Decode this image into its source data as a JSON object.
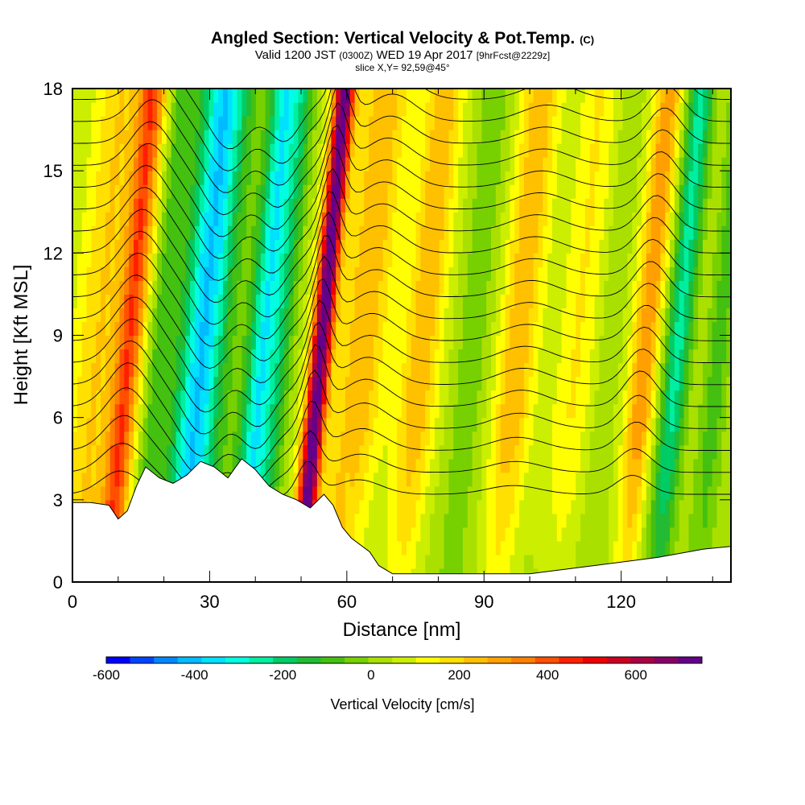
{
  "header": {
    "title": "Angled Section: Vertical Velocity & Pot.Temp.",
    "title_tag": "(C)",
    "valid_prefix": "Valid 1200 JST",
    "valid_utc": "(0300Z)",
    "valid_date": "WED 19 Apr 2017",
    "forecast": "[9hrFcst@2229z]",
    "slice": "slice X,Y= 92,59@45°"
  },
  "chart_data": {
    "type": "heatmap",
    "xlabel": "Distance [nm]",
    "ylabel": "Height [Kft MSL]",
    "xlim": [
      0,
      144
    ],
    "ylim": [
      0,
      18
    ],
    "x_ticks": [
      0,
      30,
      60,
      90,
      120
    ],
    "y_ticks": [
      0,
      3,
      6,
      9,
      12,
      15,
      18
    ],
    "colorbar": {
      "title": "Vertical Velocity [cm/s]",
      "tick_values": [
        -600,
        -400,
        -200,
        0,
        200,
        400,
        600
      ],
      "range": [
        -600,
        750
      ],
      "colors": [
        "#0000ff",
        "#0044ff",
        "#0088ff",
        "#00bbff",
        "#00e0ff",
        "#00ffe0",
        "#00eea0",
        "#00cc66",
        "#22bb33",
        "#44c011",
        "#77d000",
        "#aae000",
        "#ccee00",
        "#ffff00",
        "#ffe000",
        "#ffc000",
        "#ffa000",
        "#ff8000",
        "#ff5000",
        "#ff2000",
        "#ee0000",
        "#cc0022",
        "#aa0044",
        "#880066",
        "#660088"
      ]
    },
    "velocity_bands": [
      {
        "x": 4,
        "w": 5,
        "v": 150
      },
      {
        "x": 11,
        "w": 3,
        "v": 350
      },
      {
        "x": 18,
        "w": 3,
        "v": -150
      },
      {
        "x": 27,
        "w": 5,
        "v": -450
      },
      {
        "x": 35,
        "w": 4,
        "v": -50
      },
      {
        "x": 40,
        "w": 3,
        "v": -350
      },
      {
        "x": 44,
        "w": 3,
        "v": -200
      },
      {
        "x": 48,
        "w": 4,
        "v": 0
      },
      {
        "x": 53,
        "w": 2.2,
        "v": 700
      },
      {
        "x": 62,
        "w": 5,
        "v": 200
      },
      {
        "x": 75,
        "w": 4,
        "v": 200
      },
      {
        "x": 86,
        "w": 4,
        "v": -100
      },
      {
        "x": 96,
        "w": 4,
        "v": 200
      },
      {
        "x": 109,
        "w": 4,
        "v": 100
      },
      {
        "x": 116,
        "w": 3,
        "v": -50
      },
      {
        "x": 124,
        "w": 3,
        "v": 250
      },
      {
        "x": 131,
        "w": 3,
        "v": -300
      },
      {
        "x": 140,
        "w": 3,
        "v": -150
      }
    ],
    "terrain": [
      [
        0,
        2.9
      ],
      [
        4,
        2.9
      ],
      [
        8,
        2.8
      ],
      [
        10,
        2.3
      ],
      [
        12,
        2.6
      ],
      [
        14,
        3.5
      ],
      [
        16,
        4.2
      ],
      [
        19,
        3.8
      ],
      [
        22,
        3.6
      ],
      [
        25,
        3.9
      ],
      [
        28,
        4.4
      ],
      [
        31,
        4.2
      ],
      [
        34,
        3.8
      ],
      [
        37,
        4.5
      ],
      [
        40,
        4.1
      ],
      [
        43,
        3.5
      ],
      [
        46,
        3.2
      ],
      [
        49,
        3.0
      ],
      [
        52,
        2.7
      ],
      [
        55,
        3.2
      ],
      [
        57,
        2.8
      ],
      [
        59,
        2.0
      ],
      [
        61,
        1.6
      ],
      [
        65,
        1.1
      ],
      [
        67,
        0.6
      ],
      [
        70,
        0.3
      ],
      [
        90,
        0.3
      ],
      [
        100,
        0.3
      ],
      [
        114,
        0.6
      ],
      [
        128,
        0.9
      ],
      [
        138,
        1.2
      ],
      [
        144,
        1.3
      ]
    ],
    "isentrope_heights": [
      3.2,
      4.0,
      4.8,
      5.6,
      6.4,
      7.2,
      8.0,
      8.8,
      9.6,
      10.4,
      11.2,
      12.0,
      12.8,
      13.6,
      14.4,
      15.2,
      16.0,
      16.8,
      17.6
    ],
    "isentrope_waves": [
      {
        "x": 12,
        "amp": 1.6,
        "w": 6
      },
      {
        "x": 28,
        "amp": -1.8,
        "w": 6
      },
      {
        "x": 40,
        "amp": -1.5,
        "w": 5
      },
      {
        "x": 53,
        "amp": 2.2,
        "w": 3
      },
      {
        "x": 64,
        "amp": 1.0,
        "w": 7
      },
      {
        "x": 98,
        "amp": 0.6,
        "w": 8
      },
      {
        "x": 124,
        "amp": 1.3,
        "w": 5
      }
    ]
  }
}
